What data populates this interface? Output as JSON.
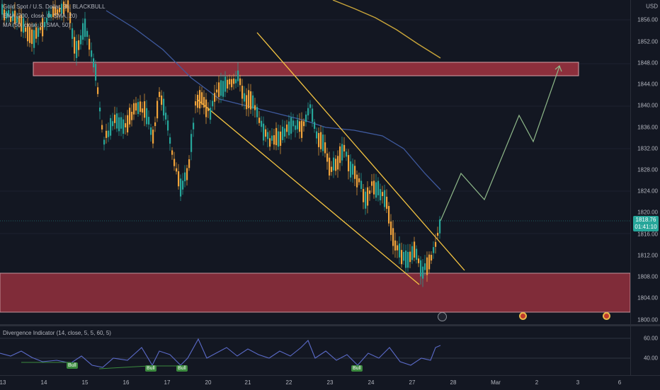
{
  "legend": {
    "symbol": "Gold Spot / U.S. Dollar, 2h, BLACKBULL",
    "ema": "EMA (200, close, 0, SMA, 20)",
    "ma": "MA (50, close, 0, SMA, 50)"
  },
  "price_axis": {
    "currency": "USD",
    "ticks": [
      "1856.00",
      "1852.00",
      "1848.00",
      "1844.00",
      "1840.00",
      "1836.00",
      "1832.00",
      "1828.00",
      "1824.00",
      "1820.00",
      "1816.00",
      "1812.00",
      "1808.00",
      "1804.00",
      "1800.00"
    ]
  },
  "current_price": {
    "value": "1818.76",
    "countdown": "01:41:10"
  },
  "time_axis": {
    "labels": [
      "13",
      "14",
      "15",
      "16",
      "17",
      "20",
      "21",
      "22",
      "23",
      "24",
      "27",
      "28",
      "Mar",
      "2",
      "3",
      "6"
    ]
  },
  "oscillator": {
    "title": "Divergence Indicator (14, close, 5, 5, 60, 5)",
    "ticks": [
      "60.00",
      "40.00"
    ],
    "bull_label": "Bull"
  },
  "colors": {
    "bg": "#131722",
    "up": "#26a69a",
    "down": "#f0a33b",
    "zone": "#8c2f3c",
    "channel": "#f5c542",
    "ema": "#c9a53a",
    "ma": "#3f5a9e",
    "projection": "#8fb98a",
    "osc_line": "#5b6bc9"
  }
}
